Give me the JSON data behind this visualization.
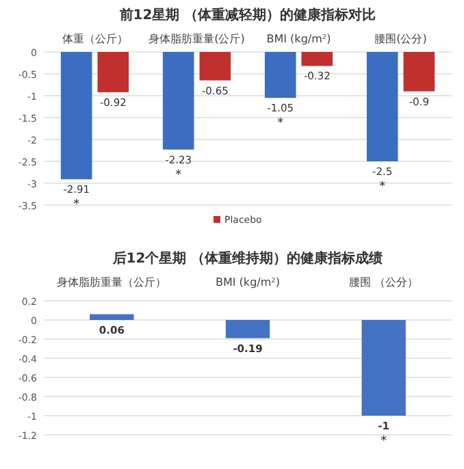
{
  "chart_data": [
    {
      "type": "bar",
      "title": "前12星期 （体重减轻期）的健康指标对比",
      "categories": [
        "体重（公斤）",
        "身体脂肪重量(公斤)",
        "BMI (kg/m²)",
        "腰围(公分)"
      ],
      "series": [
        {
          "color": "#3b6dc2",
          "values": [
            -2.91,
            -2.23,
            -1.05,
            -2.5
          ]
        },
        {
          "name": "Placebo",
          "color": "#c0302c",
          "values": [
            -0.92,
            -0.65,
            -0.32,
            -0.9
          ]
        }
      ],
      "ylim": [
        -3.5,
        0
      ],
      "yticks": [
        0,
        -0.5,
        -1,
        -1.5,
        -2,
        -2.5,
        -3,
        -3.5
      ],
      "grid": "y",
      "legend": "bottom",
      "data_labels": true,
      "annotations": [
        {
          "text": "*",
          "x": "体重（公斤）",
          "y": -2.91
        },
        {
          "text": "*",
          "x": "身体脂肪重量(公斤)",
          "y": -2.23
        },
        {
          "text": "*",
          "x": "BMI (kg/m²)",
          "y": -1.05
        },
        {
          "text": "*",
          "x": "腰围(公分)",
          "y": -2.5
        }
      ]
    },
    {
      "type": "bar",
      "title": "后12个星期 （体重维持期）的健康指标成绩",
      "categories": [
        "身体脂肪重量（公斤）",
        "BMI (kg/m²)",
        "腰围 （公分）"
      ],
      "series": [
        {
          "color": "#4472c4",
          "values": [
            0.06,
            -0.19,
            -1
          ]
        }
      ],
      "ylim": [
        -1.2,
        0.2
      ],
      "yticks": [
        0.2,
        0,
        -0.2,
        -0.4,
        -0.6,
        -0.8,
        -1,
        -1.2
      ],
      "grid": "y",
      "data_labels": true,
      "annotations": [
        {
          "text": "*",
          "x": "腰围 （公分）",
          "y": -1
        }
      ]
    }
  ]
}
